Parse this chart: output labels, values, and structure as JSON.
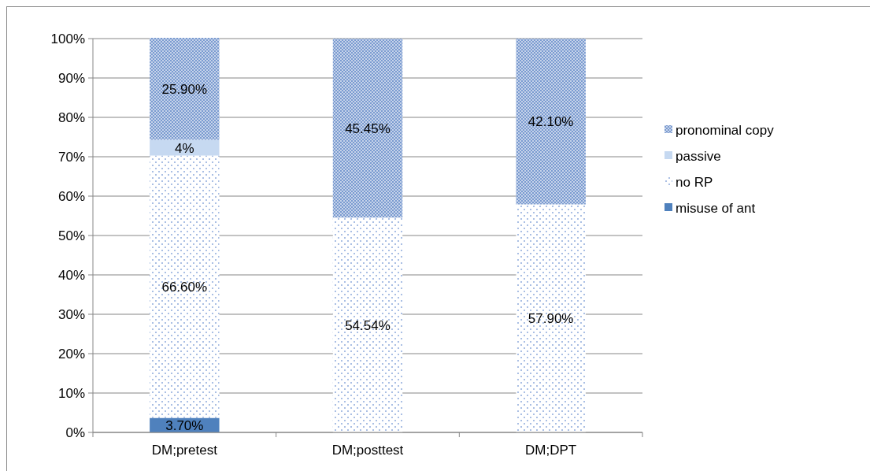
{
  "chart_data": {
    "type": "bar",
    "stacked": true,
    "categories": [
      "DM;pretest",
      "DM;posttest",
      "DM;DPT"
    ],
    "series": [
      {
        "name": "misuse of ant",
        "color": "#4f81bd",
        "values": [
          3.7,
          null,
          null
        ],
        "value_labels": [
          "3.70%",
          null,
          null
        ]
      },
      {
        "name": "no RP",
        "color": "#8eaadb",
        "values": [
          66.6,
          54.54,
          57.9
        ],
        "value_labels": [
          "66.60%",
          "54.54%",
          "57.90%"
        ]
      },
      {
        "name": "passive",
        "color": "#c6d9f1",
        "values": [
          4,
          null,
          null
        ],
        "value_labels": [
          "4%",
          null,
          null
        ]
      },
      {
        "name": "pronominal copy",
        "color": "#7a9bd0",
        "values": [
          25.9,
          45.45,
          42.1
        ],
        "value_labels": [
          "25.90%",
          "45.45%",
          "42.10%"
        ]
      }
    ],
    "ylim": [
      0,
      100
    ],
    "yticks": [
      {
        "value": 0,
        "label": "0%"
      },
      {
        "value": 10,
        "label": "10%"
      },
      {
        "value": 20,
        "label": "20%"
      },
      {
        "value": 30,
        "label": "30%"
      },
      {
        "value": 40,
        "label": "40%"
      },
      {
        "value": 50,
        "label": "50%"
      },
      {
        "value": 60,
        "label": "60%"
      },
      {
        "value": 70,
        "label": "70%"
      },
      {
        "value": 80,
        "label": "80%"
      },
      {
        "value": 90,
        "label": "90%"
      },
      {
        "value": 100,
        "label": "100%"
      }
    ],
    "grid": "y",
    "legend": "right"
  }
}
